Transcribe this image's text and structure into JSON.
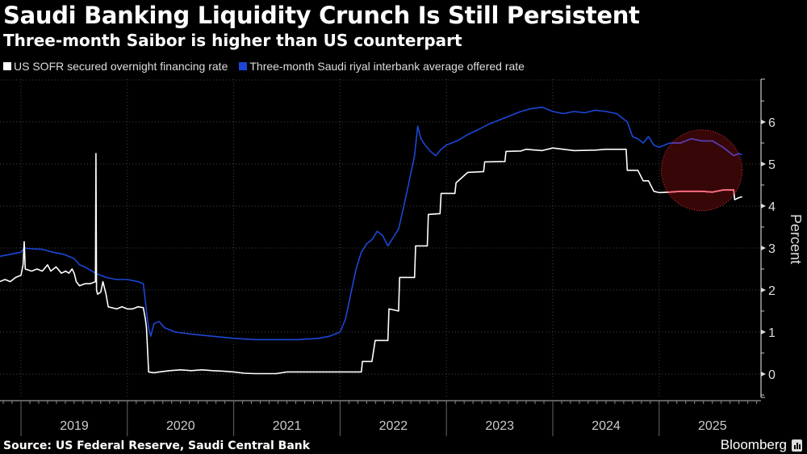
{
  "header": {
    "title": "Saudi Banking Liquidity Crunch Is Still Persistent",
    "subtitle": "Three-month Saibor is higher than US counterpart"
  },
  "footer": {
    "source": "Source: US Federal Reserve, Saudi Central Bank",
    "brand": "Bloomberg"
  },
  "chart_data": {
    "type": "line",
    "title": "Saudi Banking Liquidity Crunch Is Still Persistent",
    "subtitle": "Three-month Saibor is higher than US counterpart",
    "xlabel": "",
    "ylabel": "Percent",
    "xlim": [
      2018.8,
      2025.95
    ],
    "ylim": [
      -0.6,
      7
    ],
    "x_ticks": [
      "2019",
      "2020",
      "2021",
      "2022",
      "2023",
      "2024",
      "2025"
    ],
    "y_ticks": [
      0,
      1,
      2,
      3,
      4,
      5,
      6
    ],
    "grid": true,
    "legend_position": "top-left",
    "annotation": {
      "type": "circle-highlight",
      "color": "#e0303a",
      "x_center": 2025.4,
      "y_center": 4.85,
      "note": "recent period highlighted in red circle"
    },
    "series": [
      {
        "name": "US SOFR secured overnight financing rate",
        "color": "#ffffff",
        "points": [
          [
            2018.8,
            2.2
          ],
          [
            2018.85,
            2.25
          ],
          [
            2018.9,
            2.2
          ],
          [
            2018.95,
            2.3
          ],
          [
            2019.0,
            2.35
          ],
          [
            2019.02,
            2.6
          ],
          [
            2019.03,
            3.15
          ],
          [
            2019.04,
            2.5
          ],
          [
            2019.1,
            2.45
          ],
          [
            2019.15,
            2.5
          ],
          [
            2019.2,
            2.45
          ],
          [
            2019.25,
            2.6
          ],
          [
            2019.28,
            2.45
          ],
          [
            2019.33,
            2.55
          ],
          [
            2019.38,
            2.4
          ],
          [
            2019.42,
            2.45
          ],
          [
            2019.45,
            2.4
          ],
          [
            2019.48,
            2.5
          ],
          [
            2019.5,
            2.4
          ],
          [
            2019.52,
            2.2
          ],
          [
            2019.55,
            2.1
          ],
          [
            2019.6,
            2.15
          ],
          [
            2019.65,
            2.15
          ],
          [
            2019.7,
            2.2
          ],
          [
            2019.705,
            5.25
          ],
          [
            2019.71,
            2.0
          ],
          [
            2019.72,
            1.9
          ],
          [
            2019.75,
            1.95
          ],
          [
            2019.77,
            2.2
          ],
          [
            2019.8,
            1.9
          ],
          [
            2019.82,
            1.6
          ],
          [
            2019.9,
            1.55
          ],
          [
            2019.95,
            1.6
          ],
          [
            2020.0,
            1.55
          ],
          [
            2020.05,
            1.55
          ],
          [
            2020.1,
            1.6
          ],
          [
            2020.15,
            1.58
          ],
          [
            2020.17,
            1.3
          ],
          [
            2020.18,
            1.1
          ],
          [
            2020.2,
            0.05
          ],
          [
            2020.25,
            0.03
          ],
          [
            2020.3,
            0.05
          ],
          [
            2020.4,
            0.08
          ],
          [
            2020.5,
            0.1
          ],
          [
            2020.6,
            0.08
          ],
          [
            2020.7,
            0.1
          ],
          [
            2020.8,
            0.08
          ],
          [
            2020.9,
            0.07
          ],
          [
            2021.0,
            0.05
          ],
          [
            2021.1,
            0.02
          ],
          [
            2021.2,
            0.01
          ],
          [
            2021.3,
            0.01
          ],
          [
            2021.4,
            0.01
          ],
          [
            2021.5,
            0.05
          ],
          [
            2021.6,
            0.05
          ],
          [
            2021.7,
            0.05
          ],
          [
            2021.8,
            0.05
          ],
          [
            2021.9,
            0.05
          ],
          [
            2022.0,
            0.05
          ],
          [
            2022.2,
            0.05
          ],
          [
            2022.21,
            0.3
          ],
          [
            2022.3,
            0.3
          ],
          [
            2022.33,
            0.8
          ],
          [
            2022.45,
            0.8
          ],
          [
            2022.46,
            1.55
          ],
          [
            2022.55,
            1.5
          ],
          [
            2022.56,
            2.3
          ],
          [
            2022.7,
            2.3
          ],
          [
            2022.71,
            3.05
          ],
          [
            2022.82,
            3.05
          ],
          [
            2022.83,
            3.8
          ],
          [
            2022.94,
            3.82
          ],
          [
            2022.95,
            4.3
          ],
          [
            2023.08,
            4.3
          ],
          [
            2023.09,
            4.55
          ],
          [
            2023.2,
            4.8
          ],
          [
            2023.35,
            4.82
          ],
          [
            2023.36,
            5.05
          ],
          [
            2023.55,
            5.06
          ],
          [
            2023.56,
            5.3
          ],
          [
            2023.7,
            5.31
          ],
          [
            2023.75,
            5.35
          ],
          [
            2023.9,
            5.32
          ],
          [
            2024.0,
            5.38
          ],
          [
            2024.2,
            5.32
          ],
          [
            2024.4,
            5.33
          ],
          [
            2024.5,
            5.35
          ],
          [
            2024.69,
            5.35
          ],
          [
            2024.7,
            4.85
          ],
          [
            2024.75,
            4.85
          ],
          [
            2024.8,
            4.85
          ],
          [
            2024.85,
            4.6
          ],
          [
            2024.9,
            4.6
          ],
          [
            2024.95,
            4.35
          ],
          [
            2025.0,
            4.32
          ],
          [
            2025.1,
            4.33
          ],
          [
            2025.2,
            4.35
          ],
          [
            2025.3,
            4.35
          ],
          [
            2025.4,
            4.35
          ],
          [
            2025.5,
            4.33
          ],
          [
            2025.6,
            4.38
          ],
          [
            2025.7,
            4.38
          ],
          [
            2025.71,
            4.15
          ],
          [
            2025.75,
            4.2
          ],
          [
            2025.78,
            4.22
          ]
        ]
      },
      {
        "name": "Three-month Saudi riyal interbank average offered rate",
        "color": "#1c47d6",
        "points": [
          [
            2018.8,
            2.8
          ],
          [
            2018.9,
            2.85
          ],
          [
            2019.0,
            2.9
          ],
          [
            2019.03,
            3.0
          ],
          [
            2019.1,
            2.98
          ],
          [
            2019.2,
            2.97
          ],
          [
            2019.3,
            2.9
          ],
          [
            2019.4,
            2.85
          ],
          [
            2019.5,
            2.75
          ],
          [
            2019.55,
            2.6
          ],
          [
            2019.6,
            2.55
          ],
          [
            2019.7,
            2.4
          ],
          [
            2019.8,
            2.3
          ],
          [
            2019.9,
            2.25
          ],
          [
            2020.0,
            2.25
          ],
          [
            2020.1,
            2.2
          ],
          [
            2020.15,
            2.15
          ],
          [
            2020.18,
            1.5
          ],
          [
            2020.2,
            1.1
          ],
          [
            2020.22,
            0.9
          ],
          [
            2020.25,
            1.2
          ],
          [
            2020.3,
            1.25
          ],
          [
            2020.35,
            1.1
          ],
          [
            2020.45,
            1.0
          ],
          [
            2020.6,
            0.95
          ],
          [
            2020.8,
            0.9
          ],
          [
            2021.0,
            0.85
          ],
          [
            2021.2,
            0.82
          ],
          [
            2021.4,
            0.82
          ],
          [
            2021.6,
            0.82
          ],
          [
            2021.8,
            0.85
          ],
          [
            2021.9,
            0.9
          ],
          [
            2022.0,
            1.0
          ],
          [
            2022.05,
            1.3
          ],
          [
            2022.1,
            1.9
          ],
          [
            2022.15,
            2.5
          ],
          [
            2022.2,
            2.9
          ],
          [
            2022.25,
            3.1
          ],
          [
            2022.3,
            3.2
          ],
          [
            2022.35,
            3.4
          ],
          [
            2022.4,
            3.3
          ],
          [
            2022.45,
            3.05
          ],
          [
            2022.5,
            3.25
          ],
          [
            2022.55,
            3.45
          ],
          [
            2022.6,
            4.0
          ],
          [
            2022.65,
            4.6
          ],
          [
            2022.7,
            5.2
          ],
          [
            2022.73,
            5.9
          ],
          [
            2022.76,
            5.6
          ],
          [
            2022.8,
            5.45
          ],
          [
            2022.85,
            5.3
          ],
          [
            2022.9,
            5.2
          ],
          [
            2022.95,
            5.35
          ],
          [
            2023.0,
            5.45
          ],
          [
            2023.1,
            5.55
          ],
          [
            2023.2,
            5.7
          ],
          [
            2023.3,
            5.82
          ],
          [
            2023.4,
            5.95
          ],
          [
            2023.5,
            6.05
          ],
          [
            2023.6,
            6.15
          ],
          [
            2023.7,
            6.25
          ],
          [
            2023.8,
            6.32
          ],
          [
            2023.9,
            6.35
          ],
          [
            2024.0,
            6.25
          ],
          [
            2024.1,
            6.2
          ],
          [
            2024.2,
            6.25
          ],
          [
            2024.3,
            6.22
          ],
          [
            2024.4,
            6.28
          ],
          [
            2024.5,
            6.25
          ],
          [
            2024.6,
            6.2
          ],
          [
            2024.7,
            6.0
          ],
          [
            2024.75,
            5.65
          ],
          [
            2024.8,
            5.6
          ],
          [
            2024.85,
            5.5
          ],
          [
            2024.9,
            5.65
          ],
          [
            2024.95,
            5.45
          ],
          [
            2025.0,
            5.4
          ],
          [
            2025.1,
            5.5
          ],
          [
            2025.2,
            5.5
          ],
          [
            2025.3,
            5.6
          ],
          [
            2025.4,
            5.55
          ],
          [
            2025.5,
            5.55
          ],
          [
            2025.6,
            5.4
          ],
          [
            2025.7,
            5.2
          ],
          [
            2025.75,
            5.25
          ],
          [
            2025.78,
            5.22
          ]
        ]
      }
    ]
  }
}
